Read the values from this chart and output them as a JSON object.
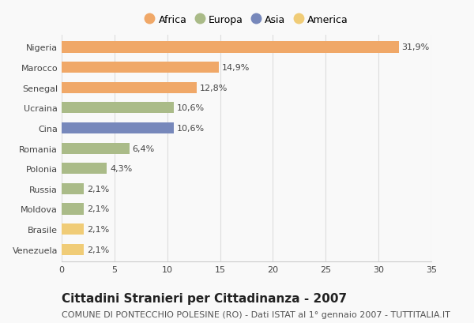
{
  "countries": [
    "Nigeria",
    "Marocco",
    "Senegal",
    "Ucraina",
    "Cina",
    "Romania",
    "Polonia",
    "Russia",
    "Moldova",
    "Brasile",
    "Venezuela"
  ],
  "values": [
    31.9,
    14.9,
    12.8,
    10.6,
    10.6,
    6.4,
    4.3,
    2.1,
    2.1,
    2.1,
    2.1
  ],
  "labels": [
    "31,9%",
    "14,9%",
    "12,8%",
    "10,6%",
    "10,6%",
    "6,4%",
    "4,3%",
    "2,1%",
    "2,1%",
    "2,1%",
    "2,1%"
  ],
  "continents": [
    "Africa",
    "Africa",
    "Africa",
    "Europa",
    "Asia",
    "Europa",
    "Europa",
    "Europa",
    "Europa",
    "America",
    "America"
  ],
  "colors": {
    "Africa": "#F0A868",
    "Europa": "#AABB88",
    "Asia": "#7788BB",
    "America": "#F0CC77"
  },
  "legend_order": [
    "Africa",
    "Europa",
    "Asia",
    "America"
  ],
  "xlim": [
    0,
    35
  ],
  "xticks": [
    0,
    5,
    10,
    15,
    20,
    25,
    30,
    35
  ],
  "title": "Cittadini Stranieri per Cittadinanza - 2007",
  "subtitle": "COMUNE DI PONTECCHIO POLESINE (RO) - Dati ISTAT al 1° gennaio 2007 - TUTTITALIA.IT",
  "bg_color": "#f9f9f9",
  "bar_height": 0.55,
  "title_fontsize": 11,
  "subtitle_fontsize": 8,
  "label_fontsize": 8,
  "tick_fontsize": 8,
  "legend_fontsize": 9
}
